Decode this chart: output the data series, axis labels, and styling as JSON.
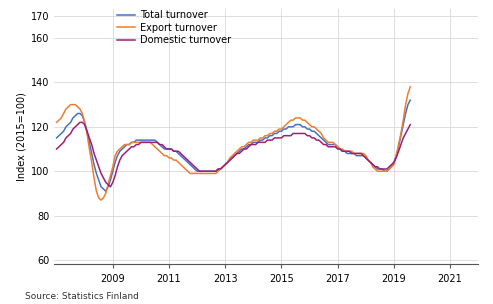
{
  "ylabel": "Index (2015=100)",
  "source_text": "Source: Statistics Finland",
  "line_colors": {
    "total": "#4472C4",
    "export": "#ED7D31",
    "domestic": "#9E1F74"
  },
  "legend_labels": [
    "Total turnover",
    "Export turnover",
    "Domestic turnover"
  ],
  "ylim": [
    58,
    173
  ],
  "xlim_start": 2006.917,
  "xlim_end": 2022.0,
  "yticks": [
    60,
    80,
    100,
    120,
    140,
    160,
    170
  ],
  "ytick_labels": [
    "60",
    "80",
    "100",
    "120",
    "140",
    "160",
    "170"
  ],
  "xtick_positions": [
    2009,
    2011,
    2013,
    2015,
    2017,
    2019,
    2021
  ],
  "xtick_labels": [
    "2009",
    "2011",
    "2013",
    "2015",
    "2017",
    "2019",
    "2021"
  ],
  "start_year": 2007,
  "start_month": 1,
  "total_turnover": [
    115,
    116,
    117,
    118,
    120,
    121,
    122,
    124,
    125,
    126,
    126,
    125,
    122,
    118,
    113,
    108,
    103,
    99,
    96,
    93,
    92,
    91,
    93,
    96,
    100,
    104,
    107,
    109,
    110,
    111,
    112,
    112,
    113,
    113,
    114,
    114,
    114,
    114,
    114,
    114,
    114,
    114,
    114,
    113,
    112,
    111,
    110,
    110,
    110,
    110,
    109,
    109,
    108,
    107,
    106,
    105,
    104,
    103,
    102,
    101,
    100,
    100,
    100,
    100,
    100,
    100,
    100,
    100,
    100,
    101,
    101,
    102,
    103,
    104,
    105,
    106,
    107,
    108,
    109,
    110,
    110,
    111,
    112,
    112,
    113,
    113,
    113,
    114,
    114,
    115,
    115,
    116,
    116,
    117,
    117,
    118,
    118,
    119,
    119,
    120,
    120,
    120,
    121,
    121,
    121,
    120,
    120,
    119,
    119,
    118,
    118,
    117,
    116,
    115,
    114,
    113,
    112,
    112,
    112,
    112,
    111,
    110,
    109,
    109,
    108,
    108,
    108,
    108,
    107,
    107,
    107,
    107,
    106,
    105,
    104,
    103,
    102,
    101,
    101,
    101,
    100,
    100,
    101,
    102,
    104,
    107,
    111,
    116,
    121,
    126,
    130,
    132
  ],
  "export_turnover": [
    122,
    123,
    124,
    126,
    128,
    129,
    130,
    130,
    130,
    129,
    128,
    126,
    122,
    117,
    110,
    104,
    97,
    91,
    88,
    87,
    88,
    90,
    94,
    98,
    102,
    107,
    109,
    110,
    111,
    112,
    112,
    112,
    113,
    113,
    113,
    113,
    113,
    113,
    113,
    113,
    113,
    112,
    111,
    110,
    109,
    108,
    107,
    107,
    106,
    106,
    105,
    105,
    104,
    103,
    102,
    101,
    100,
    99,
    99,
    99,
    99,
    99,
    99,
    99,
    99,
    99,
    99,
    99,
    99,
    100,
    101,
    102,
    103,
    104,
    106,
    107,
    108,
    109,
    110,
    111,
    111,
    112,
    113,
    113,
    114,
    114,
    114,
    115,
    115,
    116,
    116,
    117,
    117,
    118,
    118,
    119,
    119,
    120,
    121,
    122,
    123,
    123,
    124,
    124,
    124,
    123,
    123,
    122,
    121,
    120,
    120,
    119,
    118,
    117,
    115,
    114,
    113,
    113,
    113,
    112,
    111,
    110,
    110,
    109,
    109,
    109,
    109,
    108,
    108,
    108,
    108,
    108,
    107,
    105,
    104,
    102,
    101,
    100,
    100,
    100,
    100,
    100,
    101,
    102,
    103,
    107,
    112,
    117,
    123,
    130,
    135,
    138
  ],
  "domestic_turnover": [
    110,
    111,
    112,
    113,
    115,
    116,
    117,
    119,
    120,
    121,
    122,
    122,
    121,
    118,
    115,
    112,
    108,
    105,
    102,
    99,
    97,
    95,
    94,
    93,
    95,
    98,
    102,
    105,
    107,
    108,
    109,
    110,
    111,
    111,
    112,
    112,
    113,
    113,
    113,
    113,
    113,
    113,
    113,
    113,
    112,
    112,
    111,
    110,
    110,
    110,
    109,
    109,
    109,
    108,
    107,
    106,
    105,
    104,
    103,
    102,
    101,
    100,
    100,
    100,
    100,
    100,
    100,
    100,
    100,
    101,
    101,
    102,
    103,
    104,
    105,
    106,
    107,
    108,
    108,
    109,
    110,
    110,
    111,
    112,
    112,
    112,
    113,
    113,
    113,
    113,
    114,
    114,
    114,
    115,
    115,
    115,
    115,
    116,
    116,
    116,
    116,
    117,
    117,
    117,
    117,
    117,
    117,
    116,
    116,
    115,
    115,
    114,
    114,
    113,
    112,
    112,
    111,
    111,
    111,
    111,
    110,
    110,
    109,
    109,
    109,
    109,
    108,
    108,
    108,
    108,
    108,
    107,
    106,
    105,
    104,
    103,
    102,
    102,
    101,
    101,
    101,
    101,
    102,
    103,
    104,
    106,
    109,
    112,
    115,
    117,
    119,
    121
  ]
}
